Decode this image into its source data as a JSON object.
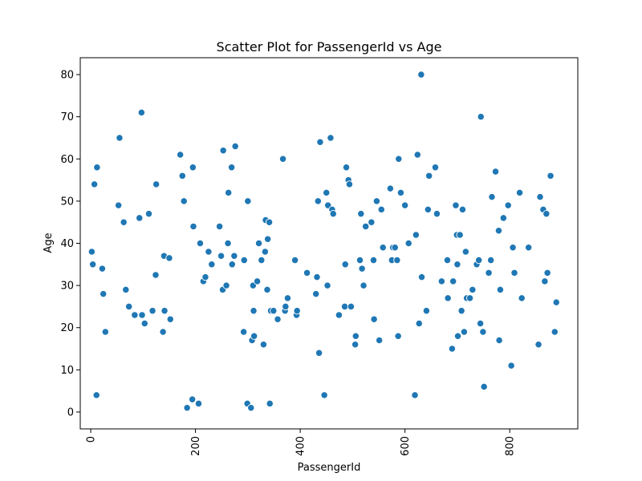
{
  "chart_data": {
    "type": "scatter",
    "title": "Scatter Plot for PassengerId vs Age",
    "xlabel": "PassengerId",
    "ylabel": "Age",
    "xlim": [
      -20,
      930
    ],
    "ylim": [
      -4,
      84
    ],
    "xticks": [
      0,
      200,
      400,
      600,
      800
    ],
    "yticks": [
      0,
      10,
      20,
      30,
      40,
      50,
      60,
      70,
      80
    ],
    "x_tick_rotation": -90,
    "grid": false,
    "legend": "none",
    "marker_color": "#1f77b4",
    "points": [
      {
        "x": 2,
        "y": 38
      },
      {
        "x": 4,
        "y": 35
      },
      {
        "x": 7,
        "y": 54
      },
      {
        "x": 11,
        "y": 4
      },
      {
        "x": 12,
        "y": 58
      },
      {
        "x": 22,
        "y": 34
      },
      {
        "x": 24,
        "y": 28
      },
      {
        "x": 28,
        "y": 19
      },
      {
        "x": 53,
        "y": 49
      },
      {
        "x": 55,
        "y": 65
      },
      {
        "x": 63,
        "y": 45
      },
      {
        "x": 67,
        "y": 29
      },
      {
        "x": 73,
        "y": 25
      },
      {
        "x": 84,
        "y": 23
      },
      {
        "x": 93,
        "y": 46
      },
      {
        "x": 97,
        "y": 71
      },
      {
        "x": 98,
        "y": 23
      },
      {
        "x": 103,
        "y": 21
      },
      {
        "x": 111,
        "y": 47
      },
      {
        "x": 118,
        "y": 24
      },
      {
        "x": 125,
        "y": 54
      },
      {
        "x": 124,
        "y": 32.5
      },
      {
        "x": 138,
        "y": 19
      },
      {
        "x": 140,
        "y": 37
      },
      {
        "x": 141,
        "y": 24
      },
      {
        "x": 150,
        "y": 36.5
      },
      {
        "x": 152,
        "y": 22
      },
      {
        "x": 171,
        "y": 61
      },
      {
        "x": 175,
        "y": 56
      },
      {
        "x": 178,
        "y": 50
      },
      {
        "x": 184,
        "y": 1
      },
      {
        "x": 194,
        "y": 3
      },
      {
        "x": 195,
        "y": 58
      },
      {
        "x": 196,
        "y": 44
      },
      {
        "x": 206,
        "y": 2
      },
      {
        "x": 209,
        "y": 40
      },
      {
        "x": 215,
        "y": 31
      },
      {
        "x": 219,
        "y": 32
      },
      {
        "x": 225,
        "y": 38
      },
      {
        "x": 231,
        "y": 35
      },
      {
        "x": 246,
        "y": 44
      },
      {
        "x": 249,
        "y": 37
      },
      {
        "x": 253,
        "y": 62
      },
      {
        "x": 252,
        "y": 29
      },
      {
        "x": 259,
        "y": 30
      },
      {
        "x": 262,
        "y": 40
      },
      {
        "x": 263,
        "y": 52
      },
      {
        "x": 269,
        "y": 58
      },
      {
        "x": 270,
        "y": 35
      },
      {
        "x": 274,
        "y": 37
      },
      {
        "x": 276,
        "y": 63
      },
      {
        "x": 292,
        "y": 19
      },
      {
        "x": 293,
        "y": 36
      },
      {
        "x": 299,
        "y": 2
      },
      {
        "x": 300,
        "y": 50
      },
      {
        "x": 306,
        "y": 1
      },
      {
        "x": 308,
        "y": 17
      },
      {
        "x": 310,
        "y": 30
      },
      {
        "x": 311,
        "y": 24
      },
      {
        "x": 312,
        "y": 18
      },
      {
        "x": 318,
        "y": 31
      },
      {
        "x": 321,
        "y": 40
      },
      {
        "x": 326,
        "y": 36
      },
      {
        "x": 330,
        "y": 16
      },
      {
        "x": 333,
        "y": 38
      },
      {
        "x": 334,
        "y": 45.5
      },
      {
        "x": 337,
        "y": 29
      },
      {
        "x": 338,
        "y": 41
      },
      {
        "x": 341,
        "y": 45
      },
      {
        "x": 342,
        "y": 2
      },
      {
        "x": 344,
        "y": 24
      },
      {
        "x": 349,
        "y": 24
      },
      {
        "x": 357,
        "y": 22
      },
      {
        "x": 367,
        "y": 60
      },
      {
        "x": 371,
        "y": 24
      },
      {
        "x": 372,
        "y": 25
      },
      {
        "x": 376,
        "y": 27
      },
      {
        "x": 390,
        "y": 36
      },
      {
        "x": 393,
        "y": 23
      },
      {
        "x": 394,
        "y": 24
      },
      {
        "x": 413,
        "y": 33
      },
      {
        "x": 430,
        "y": 28
      },
      {
        "x": 432,
        "y": 32
      },
      {
        "x": 434,
        "y": 50
      },
      {
        "x": 436,
        "y": 14
      },
      {
        "x": 438,
        "y": 64
      },
      {
        "x": 446,
        "y": 4
      },
      {
        "x": 450,
        "y": 52
      },
      {
        "x": 452,
        "y": 30
      },
      {
        "x": 453,
        "y": 49
      },
      {
        "x": 458,
        "y": 65
      },
      {
        "x": 461,
        "y": 48
      },
      {
        "x": 463,
        "y": 47
      },
      {
        "x": 474,
        "y": 23
      },
      {
        "x": 485,
        "y": 25
      },
      {
        "x": 486,
        "y": 35
      },
      {
        "x": 488,
        "y": 58
      },
      {
        "x": 492,
        "y": 55
      },
      {
        "x": 494,
        "y": 54
      },
      {
        "x": 497,
        "y": 25
      },
      {
        "x": 505,
        "y": 16
      },
      {
        "x": 506,
        "y": 18
      },
      {
        "x": 514,
        "y": 36
      },
      {
        "x": 516,
        "y": 47
      },
      {
        "x": 518,
        "y": 34
      },
      {
        "x": 521,
        "y": 30
      },
      {
        "x": 525,
        "y": 44
      },
      {
        "x": 536,
        "y": 45
      },
      {
        "x": 540,
        "y": 36
      },
      {
        "x": 541,
        "y": 22
      },
      {
        "x": 546,
        "y": 50
      },
      {
        "x": 551,
        "y": 17
      },
      {
        "x": 555,
        "y": 48
      },
      {
        "x": 558,
        "y": 39
      },
      {
        "x": 572,
        "y": 53
      },
      {
        "x": 575,
        "y": 36
      },
      {
        "x": 577,
        "y": 39
      },
      {
        "x": 581,
        "y": 39
      },
      {
        "x": 585,
        "y": 36
      },
      {
        "x": 587,
        "y": 18
      },
      {
        "x": 588,
        "y": 60
      },
      {
        "x": 592,
        "y": 52
      },
      {
        "x": 600,
        "y": 49
      },
      {
        "x": 607,
        "y": 40
      },
      {
        "x": 619,
        "y": 4
      },
      {
        "x": 621,
        "y": 42
      },
      {
        "x": 624,
        "y": 61
      },
      {
        "x": 627,
        "y": 21
      },
      {
        "x": 631,
        "y": 80
      },
      {
        "x": 632,
        "y": 32
      },
      {
        "x": 641,
        "y": 24
      },
      {
        "x": 644,
        "y": 48
      },
      {
        "x": 646,
        "y": 56
      },
      {
        "x": 658,
        "y": 58
      },
      {
        "x": 661,
        "y": 47
      },
      {
        "x": 670,
        "y": 31
      },
      {
        "x": 681,
        "y": 36
      },
      {
        "x": 682,
        "y": 27
      },
      {
        "x": 690,
        "y": 15
      },
      {
        "x": 692,
        "y": 31
      },
      {
        "x": 697,
        "y": 49
      },
      {
        "x": 699,
        "y": 42
      },
      {
        "x": 700,
        "y": 35
      },
      {
        "x": 701,
        "y": 18
      },
      {
        "x": 705,
        "y": 42
      },
      {
        "x": 708,
        "y": 24
      },
      {
        "x": 710,
        "y": 48
      },
      {
        "x": 713,
        "y": 19
      },
      {
        "x": 716,
        "y": 38
      },
      {
        "x": 718,
        "y": 27
      },
      {
        "x": 724,
        "y": 27
      },
      {
        "x": 729,
        "y": 29
      },
      {
        "x": 737,
        "y": 35
      },
      {
        "x": 741,
        "y": 36
      },
      {
        "x": 744,
        "y": 21
      },
      {
        "x": 745,
        "y": 70
      },
      {
        "x": 749,
        "y": 19
      },
      {
        "x": 751,
        "y": 6
      },
      {
        "x": 760,
        "y": 33
      },
      {
        "x": 764,
        "y": 36
      },
      {
        "x": 766,
        "y": 51
      },
      {
        "x": 773,
        "y": 57
      },
      {
        "x": 779,
        "y": 43
      },
      {
        "x": 780,
        "y": 17
      },
      {
        "x": 782,
        "y": 29
      },
      {
        "x": 788,
        "y": 46
      },
      {
        "x": 797,
        "y": 49
      },
      {
        "x": 803,
        "y": 11
      },
      {
        "x": 806,
        "y": 39
      },
      {
        "x": 809,
        "y": 33
      },
      {
        "x": 819,
        "y": 52
      },
      {
        "x": 823,
        "y": 27
      },
      {
        "x": 836,
        "y": 39
      },
      {
        "x": 855,
        "y": 16
      },
      {
        "x": 858,
        "y": 51
      },
      {
        "x": 864,
        "y": 48
      },
      {
        "x": 867,
        "y": 31
      },
      {
        "x": 870,
        "y": 47
      },
      {
        "x": 872,
        "y": 33
      },
      {
        "x": 878,
        "y": 56
      },
      {
        "x": 886,
        "y": 19
      },
      {
        "x": 889,
        "y": 26
      }
    ]
  }
}
